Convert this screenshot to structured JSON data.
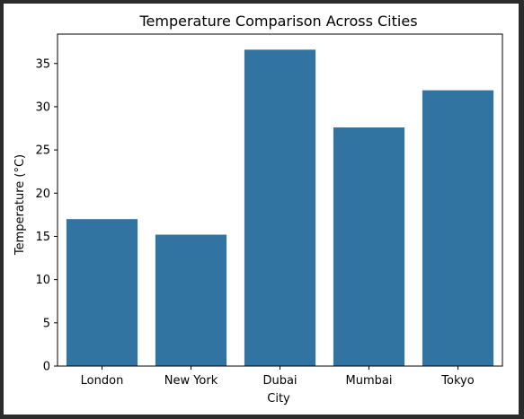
{
  "chart_data": {
    "type": "bar",
    "title": "Temperature Comparison Across Cities",
    "xlabel": "City",
    "ylabel": "Temperature (°C)",
    "categories": [
      "London",
      "New York",
      "Dubai",
      "Mumbai",
      "Tokyo"
    ],
    "values": [
      17.0,
      15.2,
      36.6,
      27.6,
      31.9
    ],
    "ylim": [
      0,
      38.4
    ],
    "yticks": [
      0,
      5,
      10,
      15,
      20,
      25,
      30,
      35
    ],
    "bar_color": "#3274a1",
    "grid": false,
    "legend": "none"
  }
}
